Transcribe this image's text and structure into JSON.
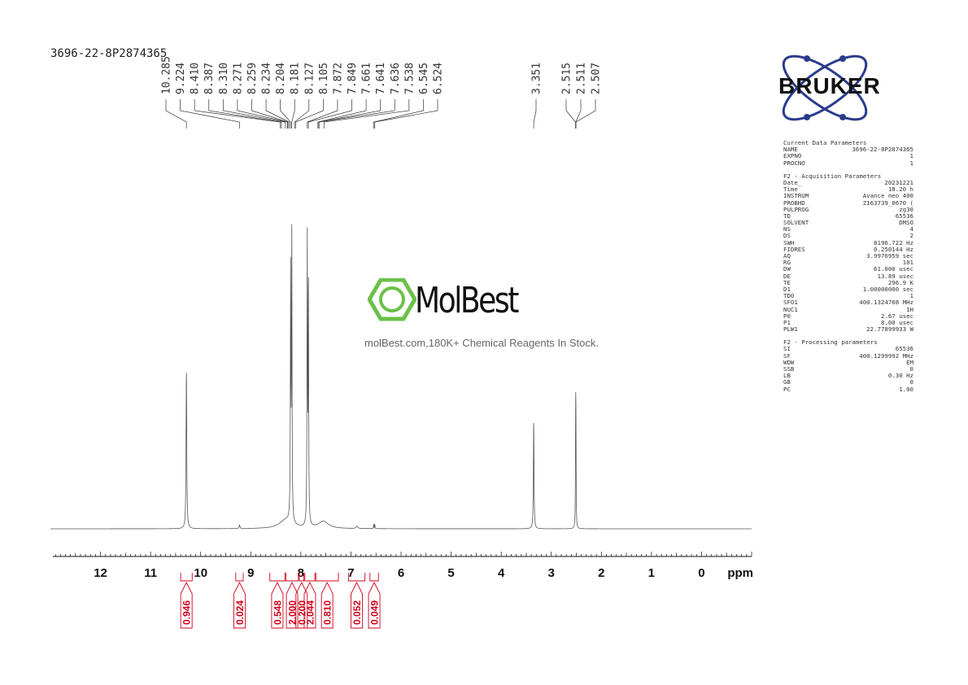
{
  "sample_id": "3696-22-8P2874365",
  "brand": {
    "watermark_name": "MolBest",
    "watermark_tagline": "molBest.com,180K+ Chemical Reagents In Stock.",
    "logo_text": "BRUKER",
    "logo_color": "#2b3c8c",
    "accent_green": "#6cc04a"
  },
  "parameters": [
    {
      "title": "Current Data Parameters",
      "rows": [
        {
          "key": "NAME",
          "value": "3696-22-8P2874365"
        },
        {
          "key": "EXPNO",
          "value": "1"
        },
        {
          "key": "PROCNO",
          "value": "1"
        }
      ]
    },
    {
      "title": "F2 - Acquisition Parameters",
      "rows": [
        {
          "key": "Date_",
          "value": "20231221"
        },
        {
          "key": "Time",
          "value": "18.20 h"
        },
        {
          "key": "INSTRUM",
          "value": "Avance neo 400"
        },
        {
          "key": "PROBHD",
          "value": "Z163739_0670 ("
        },
        {
          "key": "PULPROG",
          "value": "zg30"
        },
        {
          "key": "TD",
          "value": "65536"
        },
        {
          "key": "SOLVENT",
          "value": "DMSO"
        },
        {
          "key": "NS",
          "value": "4"
        },
        {
          "key": "DS",
          "value": "2"
        },
        {
          "key": "SWH",
          "value": "8196.722 Hz"
        },
        {
          "key": "FIDRES",
          "value": "0.250144 Hz"
        },
        {
          "key": "AQ",
          "value": "3.9976959 sec"
        },
        {
          "key": "RG",
          "value": "101"
        },
        {
          "key": "DW",
          "value": "61.000 usec"
        },
        {
          "key": "DE",
          "value": "13.89 usec"
        },
        {
          "key": "TE",
          "value": "296.9 K"
        },
        {
          "key": "D1",
          "value": "1.00000000 sec"
        },
        {
          "key": "TD0",
          "value": "1"
        },
        {
          "key": "SFO1",
          "value": "400.1324708 MHz"
        },
        {
          "key": "NUC1",
          "value": "1H"
        },
        {
          "key": "P0",
          "value": "2.67 usec"
        },
        {
          "key": "P1",
          "value": "8.00 usec"
        },
        {
          "key": "PLW1",
          "value": "22.77899933 W"
        }
      ]
    },
    {
      "title": "F2 - Processing parameters",
      "rows": [
        {
          "key": "SI",
          "value": "65536"
        },
        {
          "key": "SF",
          "value": "400.1299992 MHz"
        },
        {
          "key": "WDW",
          "value": "EM"
        },
        {
          "key": "SSB",
          "value": "0"
        },
        {
          "key": "LB",
          "value": "0.30 Hz"
        },
        {
          "key": "GB",
          "value": "0"
        },
        {
          "key": "PC",
          "value": "1.00"
        }
      ]
    }
  ],
  "chart_data": {
    "type": "line",
    "title": "",
    "xlabel": "ppm",
    "ylabel": "",
    "xlim": [
      13.0,
      -1.0
    ],
    "x_reversed": true,
    "xticks": [
      12,
      11,
      10,
      9,
      8,
      7,
      6,
      5,
      4,
      3,
      2,
      1,
      0
    ],
    "minor_tick_step": 0.1,
    "grid": false,
    "line_color": "#555555",
    "integral_color": "#d0021b",
    "peaks": [
      {
        "ppm": 10.285,
        "height": 0.56,
        "width": 0.008
      },
      {
        "ppm": 9.224,
        "height": 0.012,
        "width": 0.01
      },
      {
        "ppm": 8.204,
        "height": 0.88,
        "width": 0.006
      },
      {
        "ppm": 8.181,
        "height": 1.0,
        "width": 0.006
      },
      {
        "ppm": 7.872,
        "height": 0.99,
        "width": 0.006
      },
      {
        "ppm": 7.849,
        "height": 0.87,
        "width": 0.006
      },
      {
        "ppm": 8.3,
        "height": 0.03,
        "width": 0.15
      },
      {
        "ppm": 7.55,
        "height": 0.025,
        "width": 0.12
      },
      {
        "ppm": 6.88,
        "height": 0.008,
        "width": 0.02
      },
      {
        "ppm": 6.545,
        "height": 0.016,
        "width": 0.004
      },
      {
        "ppm": 6.524,
        "height": 0.016,
        "width": 0.004
      },
      {
        "ppm": 3.351,
        "height": 0.39,
        "width": 0.007
      },
      {
        "ppm": 2.515,
        "height": 0.22,
        "width": 0.004
      },
      {
        "ppm": 2.511,
        "height": 0.27,
        "width": 0.004
      },
      {
        "ppm": 2.507,
        "height": 0.22,
        "width": 0.004
      }
    ],
    "peak_labels": [
      {
        "label": "10.285",
        "ppm": 10.285
      },
      {
        "label": "9.224",
        "ppm": 9.224
      },
      {
        "label": "8.410",
        "ppm": 8.41
      },
      {
        "label": "8.387",
        "ppm": 8.387
      },
      {
        "label": "8.310",
        "ppm": 8.31
      },
      {
        "label": "8.271",
        "ppm": 8.271
      },
      {
        "label": "8.259",
        "ppm": 8.259
      },
      {
        "label": "8.234",
        "ppm": 8.234
      },
      {
        "label": "8.204",
        "ppm": 8.204
      },
      {
        "label": "8.181",
        "ppm": 8.181
      },
      {
        "label": "8.127",
        "ppm": 8.127
      },
      {
        "label": "8.105",
        "ppm": 8.105
      },
      {
        "label": "7.872",
        "ppm": 7.872
      },
      {
        "label": "7.849",
        "ppm": 7.849
      },
      {
        "label": "7.661",
        "ppm": 7.661
      },
      {
        "label": "7.641",
        "ppm": 7.641
      },
      {
        "label": "7.636",
        "ppm": 7.636
      },
      {
        "label": "7.538",
        "ppm": 7.538
      },
      {
        "label": "6.545",
        "ppm": 6.545
      },
      {
        "label": "6.524",
        "ppm": 6.524
      },
      {
        "label": "3.351",
        "ppm": 3.351
      },
      {
        "label": "2.515",
        "ppm": 2.515
      },
      {
        "label": "2.511",
        "ppm": 2.511
      },
      {
        "label": "2.507",
        "ppm": 2.507
      }
    ],
    "integrals": [
      {
        "value": "0.946",
        "from": 10.4,
        "to": 10.17
      },
      {
        "value": "0.024",
        "from": 9.3,
        "to": 9.15
      },
      {
        "value": "0.548",
        "from": 8.62,
        "to": 8.32
      },
      {
        "value": "2.000",
        "from": 8.3,
        "to": 8.05
      },
      {
        "value": "0.200",
        "from": 8.03,
        "to": 7.94
      },
      {
        "value": "2.044",
        "from": 7.92,
        "to": 7.72
      },
      {
        "value": "0.810",
        "from": 7.7,
        "to": 7.25
      },
      {
        "value": "0.052",
        "from": 7.05,
        "to": 6.72
      },
      {
        "value": "0.049",
        "from": 6.62,
        "to": 6.45
      }
    ]
  }
}
